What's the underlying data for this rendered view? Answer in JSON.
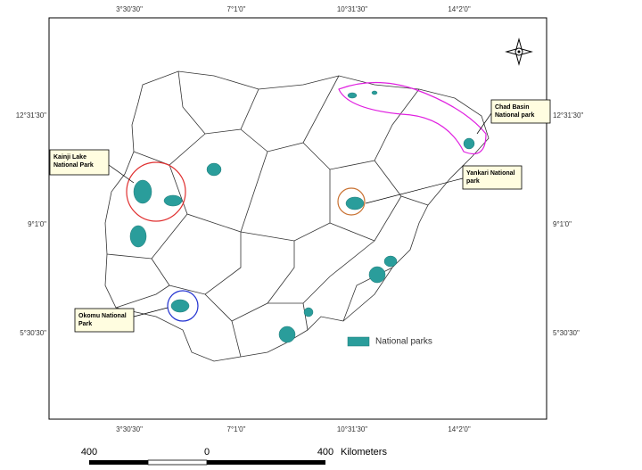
{
  "graticule": {
    "top": [
      "3°30'30\"",
      "7°1'0\"",
      "10°31'30\"",
      "14°2'0\""
    ],
    "bottom": [
      "3°30'30\"",
      "7°1'0\"",
      "10°31'30\"",
      "14°2'0\""
    ],
    "left": [
      "12°31'30\"",
      "9°1'0\"",
      "5°30'30\""
    ],
    "right": [
      "12°31'30\"",
      "9°1'0\"",
      "5°30'30\""
    ]
  },
  "callouts": [
    {
      "label": "Kainji Lake National Park"
    },
    {
      "label": "Yankari National park"
    },
    {
      "label": "Chad Basin National park"
    },
    {
      "label": "Okomu National Park"
    }
  ],
  "legend": {
    "label": "National parks"
  },
  "scale_bar": {
    "ticks": [
      400,
      0,
      400
    ],
    "unit": "Kilometers"
  }
}
